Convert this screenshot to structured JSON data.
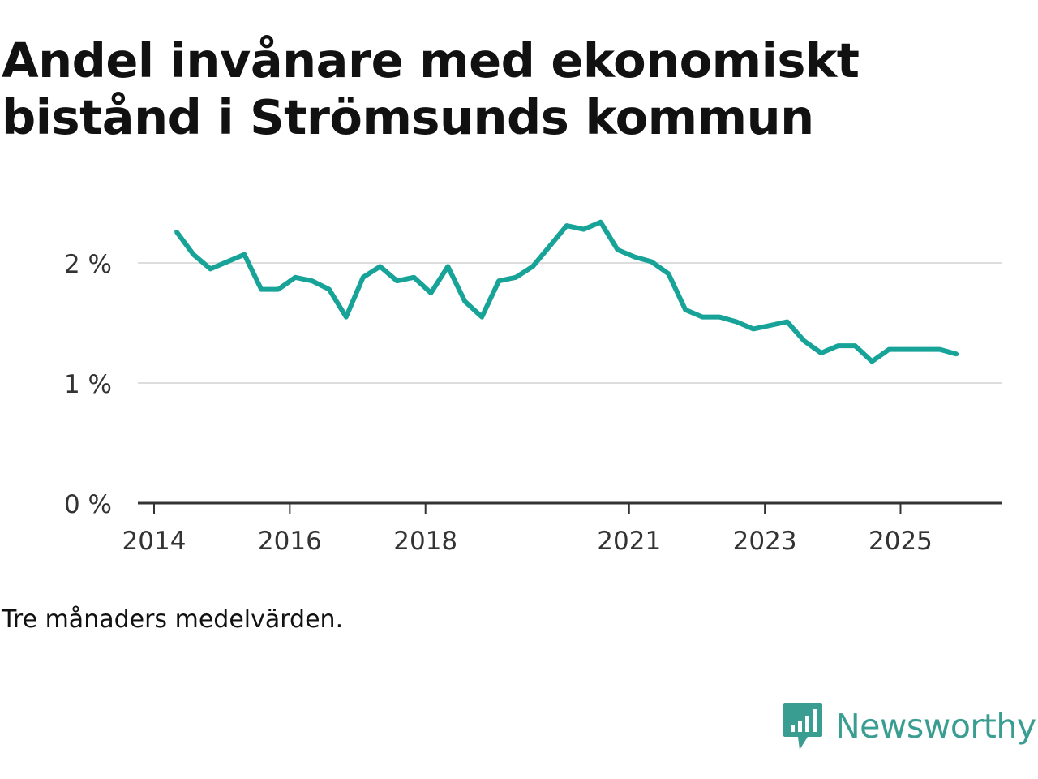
{
  "title_line1": "Andel invånare med ekonomiskt",
  "title_line2": "bistånd i Strömsunds kommun",
  "note": "Tre månaders medelvärden.",
  "brand": {
    "name": "Newsworthy",
    "icon": "newsworthy-logo-icon",
    "color": "#3a9d92"
  },
  "colors": {
    "line": "#17a398",
    "grid": "#dddddd",
    "axis": "#333333",
    "tick_text": "#333333"
  },
  "chart_data": {
    "type": "line",
    "title": "Andel invånare med ekonomiskt bistånd i Strömsunds kommun",
    "xlabel": "",
    "ylabel": "",
    "ylim": [
      0,
      2.5
    ],
    "xlim": [
      2014,
      2026.5
    ],
    "grid": true,
    "yticks": [
      0,
      1,
      2
    ],
    "ytick_labels": [
      "0 %",
      "1 %",
      "2 %"
    ],
    "xticks": [
      2014,
      2016,
      2018,
      2021,
      2023,
      2025
    ],
    "xtick_labels": [
      "2014",
      "2016",
      "2018",
      "2021",
      "2023",
      "2025"
    ],
    "series": [
      {
        "name": "Andel invånare med ekonomiskt bistånd",
        "x": [
          2014.33,
          2014.58,
          2014.83,
          2015.08,
          2015.33,
          2015.58,
          2015.83,
          2016.08,
          2016.33,
          2016.58,
          2016.83,
          2017.08,
          2017.33,
          2017.58,
          2017.83,
          2018.08,
          2018.33,
          2018.58,
          2018.83,
          2019.08,
          2019.33,
          2019.58,
          2019.83,
          2020.08,
          2020.33,
          2020.58,
          2020.83,
          2021.08,
          2021.33,
          2021.58,
          2021.83,
          2022.08,
          2022.33,
          2022.58,
          2022.83,
          2023.08,
          2023.33,
          2023.58,
          2023.83,
          2024.08,
          2024.33,
          2024.58,
          2024.83,
          2025.08,
          2025.33,
          2025.58,
          2025.83
        ],
        "values": [
          2.26,
          2.07,
          1.95,
          2.01,
          2.07,
          1.78,
          1.78,
          1.88,
          1.85,
          1.78,
          1.55,
          1.88,
          1.97,
          1.85,
          1.88,
          1.75,
          1.97,
          1.68,
          1.55,
          1.85,
          1.88,
          1.97,
          2.14,
          2.31,
          2.28,
          2.34,
          2.11,
          2.05,
          2.01,
          1.91,
          1.61,
          1.55,
          1.55,
          1.51,
          1.45,
          1.48,
          1.51,
          1.35,
          1.25,
          1.31,
          1.31,
          1.18,
          1.28,
          1.28,
          1.28,
          1.28,
          1.24
        ]
      }
    ]
  }
}
